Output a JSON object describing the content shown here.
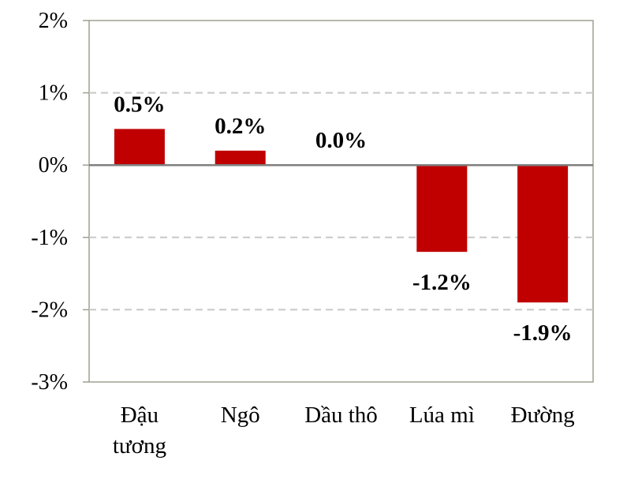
{
  "chart_data": {
    "type": "bar",
    "categories": [
      [
        "Đậu",
        "tương"
      ],
      [
        "Ngô"
      ],
      [
        "Dầu thô"
      ],
      [
        "Lúa mì"
      ],
      [
        "Đường"
      ]
    ],
    "values": [
      0.5,
      0.2,
      0.0,
      -1.2,
      -1.9
    ],
    "data_labels": [
      "0.5%",
      "0.2%",
      "0.0%",
      "-1.2%",
      "-1.9%"
    ],
    "yticks": [
      2,
      1,
      0,
      -1,
      -2,
      -3
    ],
    "ytick_labels": [
      "2%",
      "1%",
      "0%",
      "-1%",
      "-2%",
      "-3%"
    ],
    "ylim": [
      -3,
      2
    ],
    "grid": true,
    "colors": {
      "bar": "#c00000",
      "grid": "#c8c8c8",
      "zero_line": "#7f7f7f",
      "frame": "#a09f90"
    }
  }
}
